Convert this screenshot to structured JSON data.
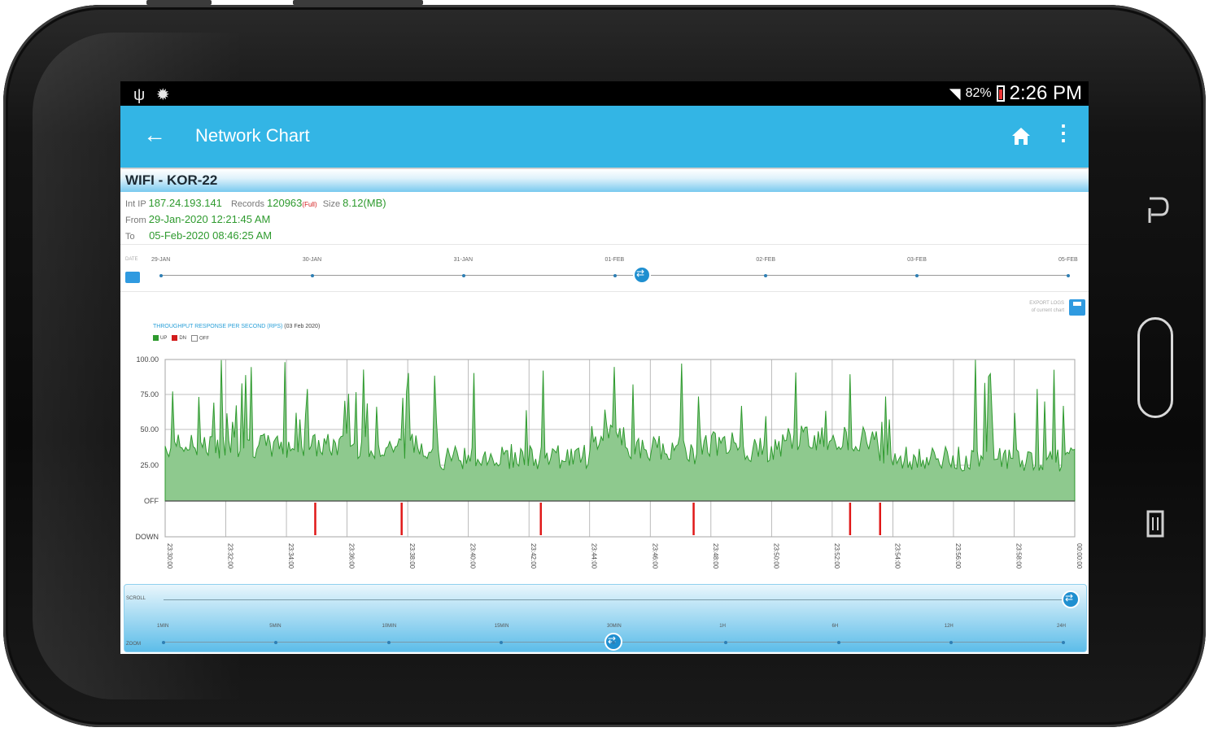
{
  "status_bar": {
    "signal_percent": "82%",
    "time": "2:26 PM",
    "left_icons": [
      "usb-icon",
      "gear-icon"
    ]
  },
  "app_bar": {
    "title": "Network Chart"
  },
  "network": {
    "name": "WIFI - KOR-22",
    "ip_label": "Int IP",
    "ip": "187.24.193.141",
    "records_label": "Records",
    "records": "120963",
    "records_tag": "(Full)",
    "size_label": "Size",
    "size": "8.12(MB)",
    "from_label": "From",
    "from": "29-Jan-2020 12:21:45 AM",
    "to_label": "To",
    "to": "05-Feb-2020 08:46:25 AM"
  },
  "date_slider": {
    "label": "DATE",
    "ticks": [
      "29-JAN",
      "30-JAN",
      "31-JAN",
      "01-FEB",
      "02-FEB",
      "03-FEB",
      "05-FEB"
    ],
    "knob_fraction": 0.53
  },
  "export": {
    "line1": "EXPORT LOGS",
    "line2": "of current chart"
  },
  "chart_data": {
    "type": "area",
    "title": "THROUGHPUT RESPONSE PER SECOND (RPS)",
    "title_date": "(03 Feb 2020)",
    "legend": [
      {
        "label": "UP",
        "color": "#2e9a2e"
      },
      {
        "label": "DN",
        "color": "#d21c1c"
      },
      {
        "label": "OFF",
        "color": "#ffffff"
      }
    ],
    "y_labels": [
      "100.00",
      "75.00",
      "50.00",
      "25.00",
      "OFF",
      "DOWN"
    ],
    "x_labels": [
      "23:30:00",
      "23:32:00",
      "23:34:00",
      "23:36:00",
      "23:38:00",
      "23:40:00",
      "23:42:00",
      "23:44:00",
      "23:46:00",
      "23:48:00",
      "23:50:00",
      "23:52:00",
      "23:54:00",
      "23:56:00",
      "23:58:00",
      "00:00:00"
    ],
    "ylim": [
      0,
      100
    ],
    "down_events_fraction": [
      0.165,
      0.26,
      0.413,
      0.581,
      0.753,
      0.786
    ],
    "up_color": "#2e9a2e",
    "up_fill": "#8ec98e",
    "down_color": "#e01818"
  },
  "scroll": {
    "label": "SCROLL",
    "knob_fraction": 1.0
  },
  "zoom": {
    "label": "ZOOM",
    "ticks": [
      "1MIN",
      "5MIN",
      "10MIN",
      "15MIN",
      "30MIN",
      "1H",
      "6H",
      "12H",
      "24H"
    ],
    "knob_fraction": 0.5
  }
}
